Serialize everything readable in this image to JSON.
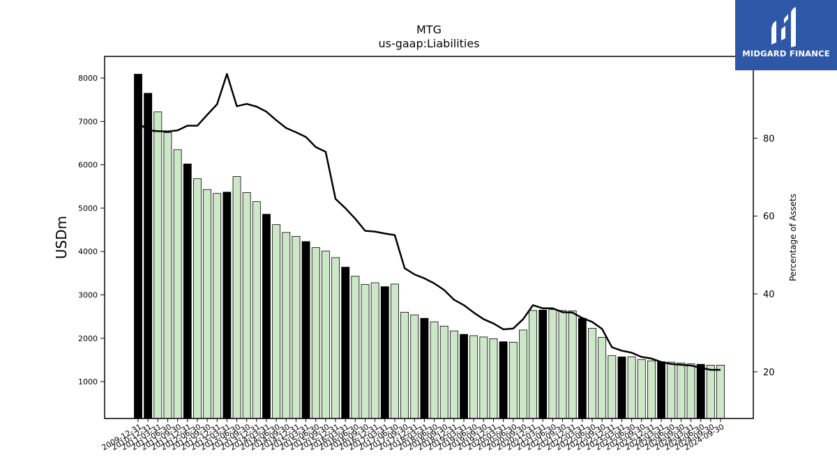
{
  "logo": {
    "text": "MIDGARD FINANCE"
  },
  "chart_data": {
    "type": "bar",
    "title": "MTG",
    "subtitle": "us-gaap:Liabilities",
    "ylabel": "USDm",
    "y2label": "Percentage of Assets",
    "ylim": [
      150,
      8500
    ],
    "y2lim": [
      8,
      101
    ],
    "yticks": [
      1000,
      2000,
      3000,
      4000,
      5000,
      6000,
      7000,
      8000
    ],
    "y2ticks": [
      20,
      40,
      60,
      80
    ],
    "colors": {
      "annual_bar": "#000000",
      "quarter_bar": "#cce8c6",
      "line": "#000000"
    },
    "categories": [
      "2009-12-31",
      "2010-03-31",
      "2010-06-30",
      "2010-09-30",
      "2010-12-31",
      "2011-03-31",
      "2011-06-30",
      "2011-09-30",
      "2011-12-31",
      "2012-03-31",
      "2012-06-30",
      "2012-09-30",
      "2012-12-31",
      "2013-03-31",
      "2013-06-30",
      "2013-09-30",
      "2013-12-31",
      "2014-03-31",
      "2014-06-30",
      "2014-09-30",
      "2014-12-31",
      "2015-03-31",
      "2015-06-30",
      "2015-09-30",
      "2015-12-31",
      "2016-03-31",
      "2016-06-30",
      "2016-09-30",
      "2016-12-31",
      "2017-03-31",
      "2017-06-30",
      "2017-09-30",
      "2017-12-31",
      "2018-03-31",
      "2018-06-30",
      "2018-09-30",
      "2018-12-31",
      "2019-03-31",
      "2019-06-30",
      "2019-09-30",
      "2019-12-31",
      "2020-03-31",
      "2020-06-30",
      "2020-09-30",
      "2020-12-31",
      "2021-03-31",
      "2021-06-30",
      "2021-09-30",
      "2021-12-31",
      "2022-03-31",
      "2022-06-30",
      "2022-09-30",
      "2022-12-31",
      "2023-03-31",
      "2023-06-30",
      "2023-09-30",
      "2023-12-31",
      "2024-03-31",
      "2024-06-30",
      "2024-09-30"
    ],
    "tick_labels": [
      "2009-12-31",
      "2010-12-31",
      "2011-03-31",
      "2011-06-30",
      "2011-09-30",
      "2011-12-31",
      "2012-06-30",
      "2012-09-30",
      "2012-12-31",
      "2013-03-31",
      "2013-06-30",
      "2013-09-30",
      "2013-12-31",
      "2014-03-31",
      "2014-06-30",
      "2014-09-30",
      "2014-12-31",
      "2015-03-31",
      "2015-06-30",
      "2015-09-30",
      "2015-12-31",
      "2016-03-31",
      "2016-06-30",
      "2016-09-30",
      "2016-12-31",
      "2017-03-31",
      "2017-06-30",
      "2017-09-30",
      "2017-12-31",
      "2018-03-31",
      "2018-06-30",
      "2018-09-30",
      "2018-12-31",
      "2019-03-31",
      "2019-06-30",
      "2019-09-30",
      "2019-12-31",
      "2020-03-31",
      "2020-06-30",
      "2020-09-30",
      "2020-12-31",
      "2021-03-31",
      "2021-06-30",
      "2021-09-30",
      "2021-12-31",
      "2022-03-31",
      "2022-06-30",
      "2022-09-30",
      "2022-12-31",
      "2023-03-31",
      "2023-06-30",
      "2023-09-30",
      "2023-12-31",
      "2024-03-31",
      "2024-06-30",
      "2024-09-30",
      "2024-03-31",
      "2024-06-30",
      "2024-09-30",
      "2024-09-30"
    ],
    "annual": [
      true,
      true,
      false,
      false,
      false,
      true,
      false,
      false,
      false,
      true,
      false,
      false,
      false,
      true,
      false,
      false,
      false,
      true,
      false,
      false,
      false,
      true,
      false,
      false,
      false,
      true,
      false,
      false,
      false,
      true,
      false,
      false,
      false,
      true,
      false,
      false,
      false,
      true,
      false,
      false,
      false,
      true,
      false,
      false,
      false,
      true,
      false,
      false,
      false,
      true,
      false,
      false,
      false,
      true,
      false,
      false,
      false,
      true,
      false,
      false
    ],
    "series": [
      {
        "axis": "left",
        "values": [
          8090,
          7650,
          7220,
          6740,
          6350,
          6020,
          5680,
          5430,
          5340,
          5370,
          5730,
          5360,
          5150,
          4860,
          4620,
          4440,
          4350,
          4230,
          4090,
          4010,
          3860,
          3640,
          3430,
          3240,
          3280,
          3190,
          3250,
          2600,
          2540,
          2460,
          2380,
          2280,
          2170,
          2090,
          2060,
          2030,
          1990,
          1920,
          1910,
          2190,
          2640,
          2650,
          2660,
          2640,
          2630,
          2460,
          2230,
          2020,
          1600,
          1570,
          1570,
          1510,
          1480,
          1460,
          1450,
          1430,
          1410,
          1400,
          1380,
          1380
        ]
      },
      {
        "type": "line",
        "axis": "right",
        "values": [
          84,
          82,
          81.8,
          81.7,
          82,
          83.2,
          83.2,
          86,
          88.7,
          96.5,
          88.2,
          88.8,
          88.1,
          86.8,
          84.6,
          82.6,
          81.5,
          80.3,
          77.7,
          76.5,
          64.4,
          62,
          59.3,
          56.2,
          56,
          55.5,
          55.1,
          46.6,
          45,
          44,
          42.7,
          41,
          38.5,
          37.1,
          35.2,
          33.5,
          32.4,
          30.9,
          31.1,
          33.5,
          37.1,
          36.3,
          36.3,
          35.3,
          35.2,
          33.8,
          32.8,
          31,
          26.3,
          25.4,
          24.9,
          23.8,
          23.4,
          22.5,
          22,
          21.8,
          21.6,
          21,
          20.5,
          20.5
        ]
      }
    ]
  }
}
